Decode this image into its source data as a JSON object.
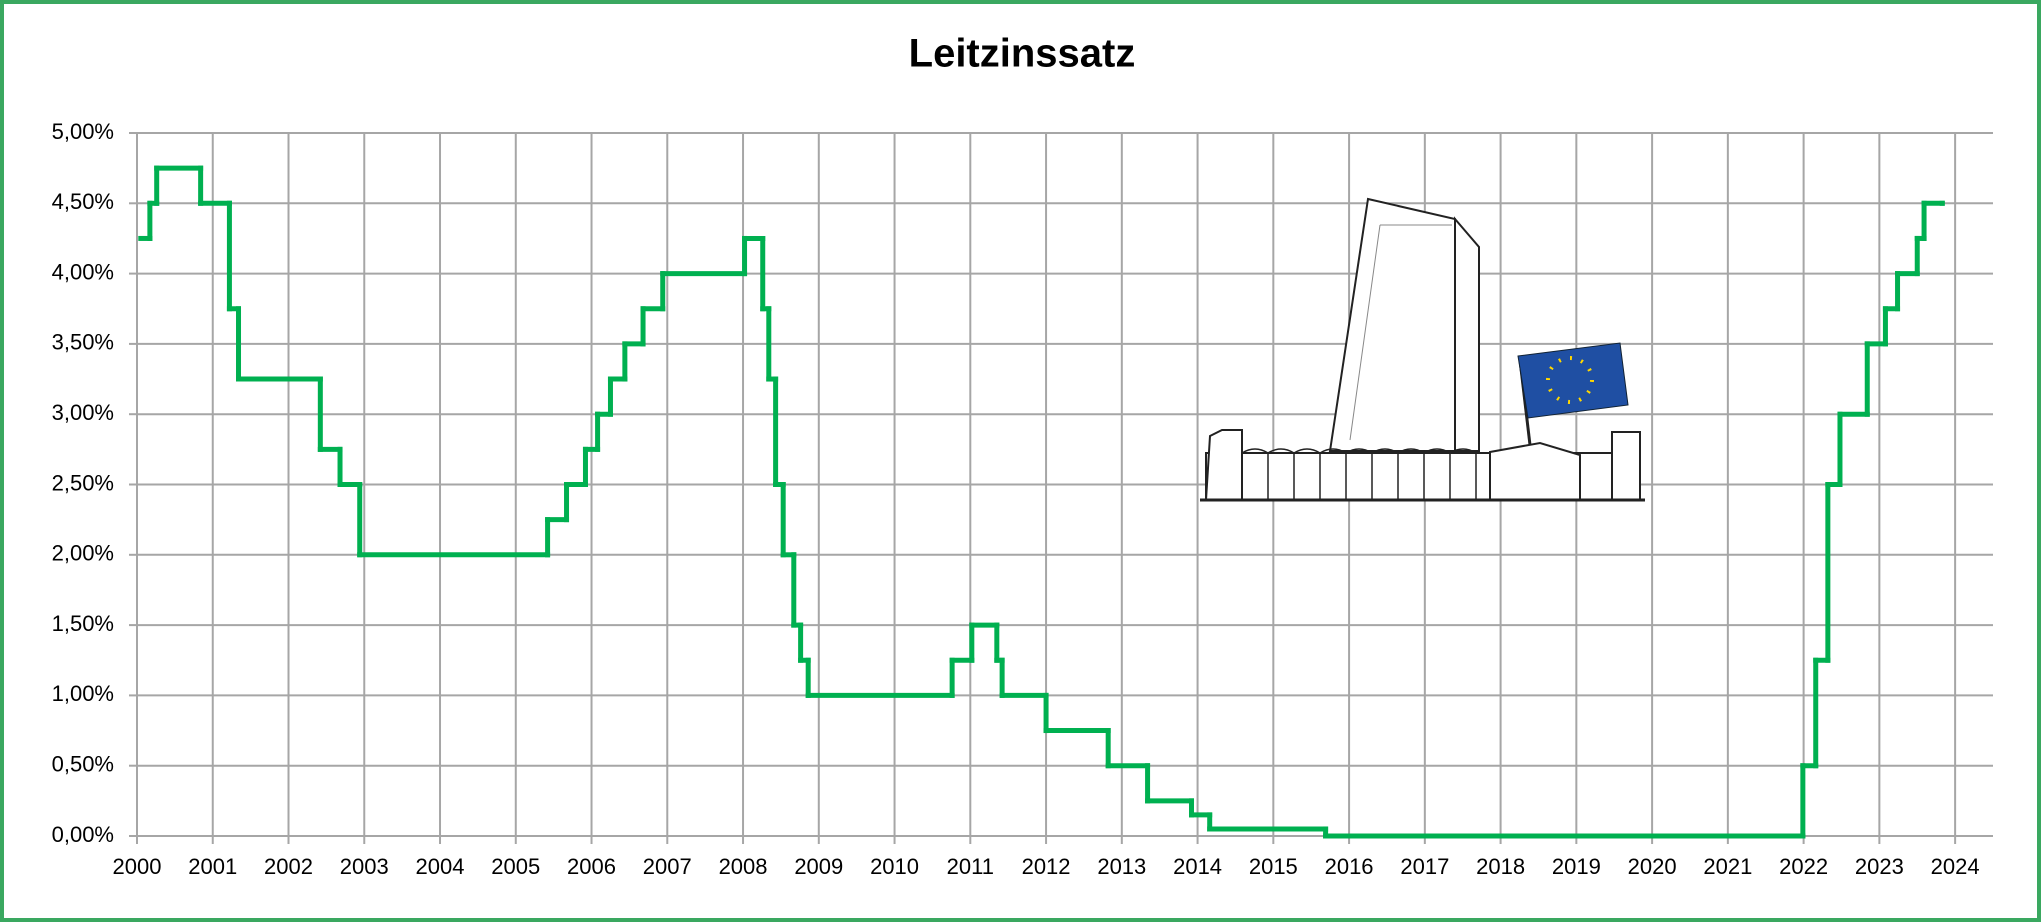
{
  "chart_data": {
    "type": "line",
    "step": "post",
    "title": "Leitzinssatz",
    "color": "#00b050",
    "grid": true,
    "x": [
      2000.05,
      2000.17,
      2000.26,
      2000.84,
      2001.22,
      2001.34,
      2002.42,
      2002.68,
      2002.94,
      2005.42,
      2005.67,
      2005.92,
      2006.08,
      2006.25,
      2006.44,
      2006.68,
      2006.94,
      2008.02,
      2008.26,
      2008.34,
      2008.43,
      2008.53,
      2008.67,
      2008.76,
      2008.86,
      2010.76,
      2011.02,
      2011.35,
      2011.42,
      2012.0,
      2012.82,
      2013.34,
      2013.92,
      2014.16,
      2015.69,
      2021.99,
      2022.16,
      2022.32,
      2022.48,
      2022.84,
      2023.08,
      2023.24,
      2023.5,
      2023.59,
      2023.83
    ],
    "values": [
      4.25,
      4.5,
      4.75,
      4.5,
      3.75,
      3.25,
      2.75,
      2.5,
      2.0,
      2.25,
      2.5,
      2.75,
      3.0,
      3.25,
      3.5,
      3.75,
      4.0,
      4.25,
      3.75,
      3.25,
      2.5,
      2.0,
      1.5,
      1.25,
      1.0,
      1.25,
      1.5,
      1.25,
      1.0,
      0.75,
      0.5,
      0.25,
      0.15,
      0.05,
      0.0,
      0.5,
      1.25,
      2.5,
      3.0,
      3.5,
      3.75,
      4.0,
      4.25,
      4.5,
      4.5
    ],
    "xlim": [
      2000,
      2024.5
    ],
    "xticks": [
      2000,
      2001,
      2002,
      2003,
      2004,
      2005,
      2006,
      2007,
      2008,
      2009,
      2010,
      2011,
      2012,
      2013,
      2014,
      2015,
      2016,
      2017,
      2018,
      2019,
      2020,
      2021,
      2022,
      2023,
      2024
    ],
    "ylim": [
      0,
      5
    ],
    "yticks": [
      {
        "value": 0,
        "label": "0,00%"
      },
      {
        "value": 0.5,
        "label": "0,50%"
      },
      {
        "value": 1,
        "label": "1,00%"
      },
      {
        "value": 1.5,
        "label": "1,50%"
      },
      {
        "value": 2,
        "label": "2,00%"
      },
      {
        "value": 2.5,
        "label": "2,50%"
      },
      {
        "value": 3,
        "label": "3,00%"
      },
      {
        "value": 3.5,
        "label": "3,50%"
      },
      {
        "value": 4,
        "label": "4,00%"
      },
      {
        "value": 4.5,
        "label": "4,50%"
      },
      {
        "value": 5,
        "label": "5,00%"
      }
    ]
  }
}
